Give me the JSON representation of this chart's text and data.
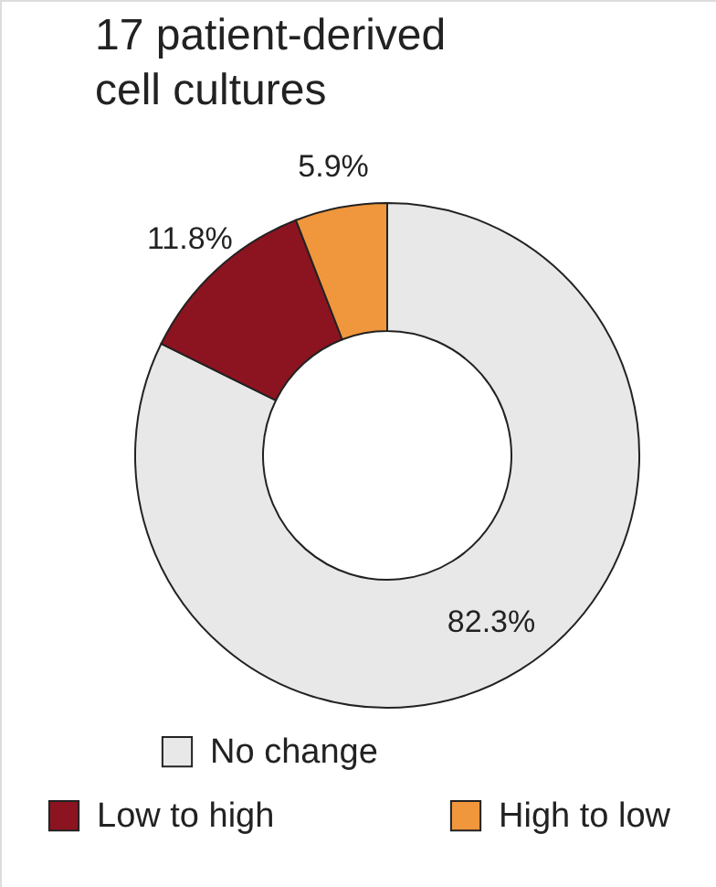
{
  "chart_data": {
    "type": "donut",
    "title": "17 patient-derived cell cultures",
    "categories": [
      "No change",
      "Low to high",
      "High to low"
    ],
    "values": [
      82.3,
      11.8,
      5.9
    ],
    "colors": [
      "#e8e8e8",
      "#8c1420",
      "#f0963c"
    ],
    "value_labels": [
      "82.3%",
      "11.8%",
      "5.9%"
    ],
    "legend": "bottom"
  }
}
